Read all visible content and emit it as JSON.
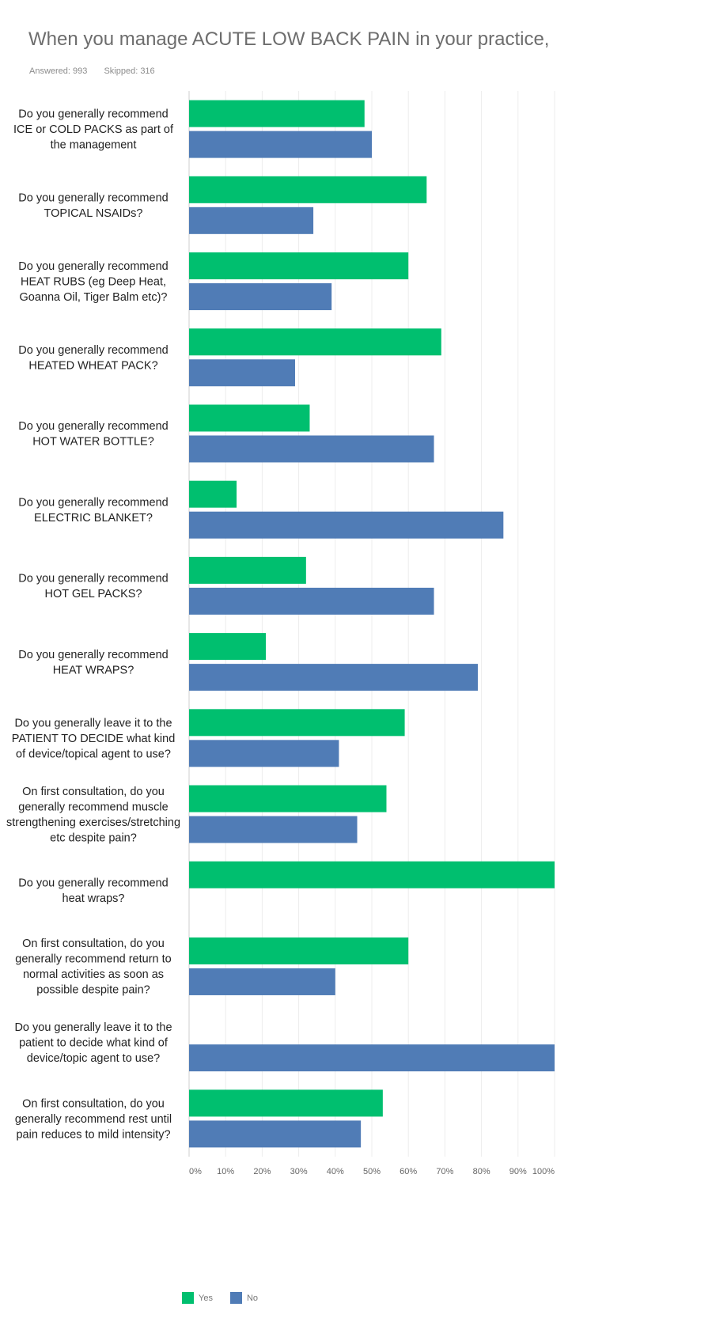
{
  "header": {
    "title": "When you manage ACUTE LOW BACK PAIN in your practice,",
    "answered": "Answered: 993",
    "skipped": "Skipped: 316"
  },
  "chart_data": {
    "type": "bar",
    "orientation": "horizontal",
    "categories": [
      [
        "Do you generally recommend",
        "ICE or COLD PACKS as part of",
        "the management"
      ],
      [
        "Do you generally recommend",
        "TOPICAL NSAIDs?"
      ],
      [
        "Do you generally recommend",
        "HEAT RUBS (eg Deep Heat,",
        "Goanna Oil, Tiger Balm etc)?"
      ],
      [
        "Do you generally recommend",
        "HEATED WHEAT PACK?"
      ],
      [
        "Do you generally recommend",
        "HOT WATER BOTTLE?"
      ],
      [
        "Do you generally recommend",
        "ELECTRIC BLANKET?"
      ],
      [
        "Do you generally recommend",
        "HOT GEL PACKS?"
      ],
      [
        "Do you generally recommend",
        "HEAT WRAPS?"
      ],
      [
        "Do you generally leave it to the",
        "PATIENT TO DECIDE what kind",
        "of device/topical agent to use?"
      ],
      [
        "On first consultation, do you",
        "generally recommend muscle",
        "strengthening exercises/stretching",
        "etc despite pain?"
      ],
      [
        "Do you generally recommend",
        "heat wraps?"
      ],
      [
        "On first consultation, do you",
        "generally recommend return to",
        "normal activities as soon as",
        "possible despite pain?"
      ],
      [
        "Do you generally leave it to the",
        "patient to decide what kind of",
        "device/topic agent to use?"
      ],
      [
        "On first consultation, do you",
        "generally recommend rest until",
        "pain reduces to mild intensity?"
      ]
    ],
    "series": [
      {
        "name": "Yes",
        "color": "#00bf6f",
        "values": [
          48,
          65,
          60,
          69,
          33,
          13,
          32,
          21,
          59,
          54,
          100,
          60,
          0,
          53
        ]
      },
      {
        "name": "No",
        "color": "#507cb6",
        "values": [
          50,
          34,
          39,
          29,
          67,
          86,
          67,
          79,
          41,
          46,
          0,
          40,
          100,
          47
        ]
      }
    ],
    "x_ticks": [
      "0%",
      "10%",
      "20%",
      "30%",
      "40%",
      "50%",
      "60%",
      "70%",
      "80%",
      "90%",
      "100%"
    ],
    "xlim": [
      0,
      100
    ],
    "grid": true,
    "legend_position": "bottom-left"
  }
}
